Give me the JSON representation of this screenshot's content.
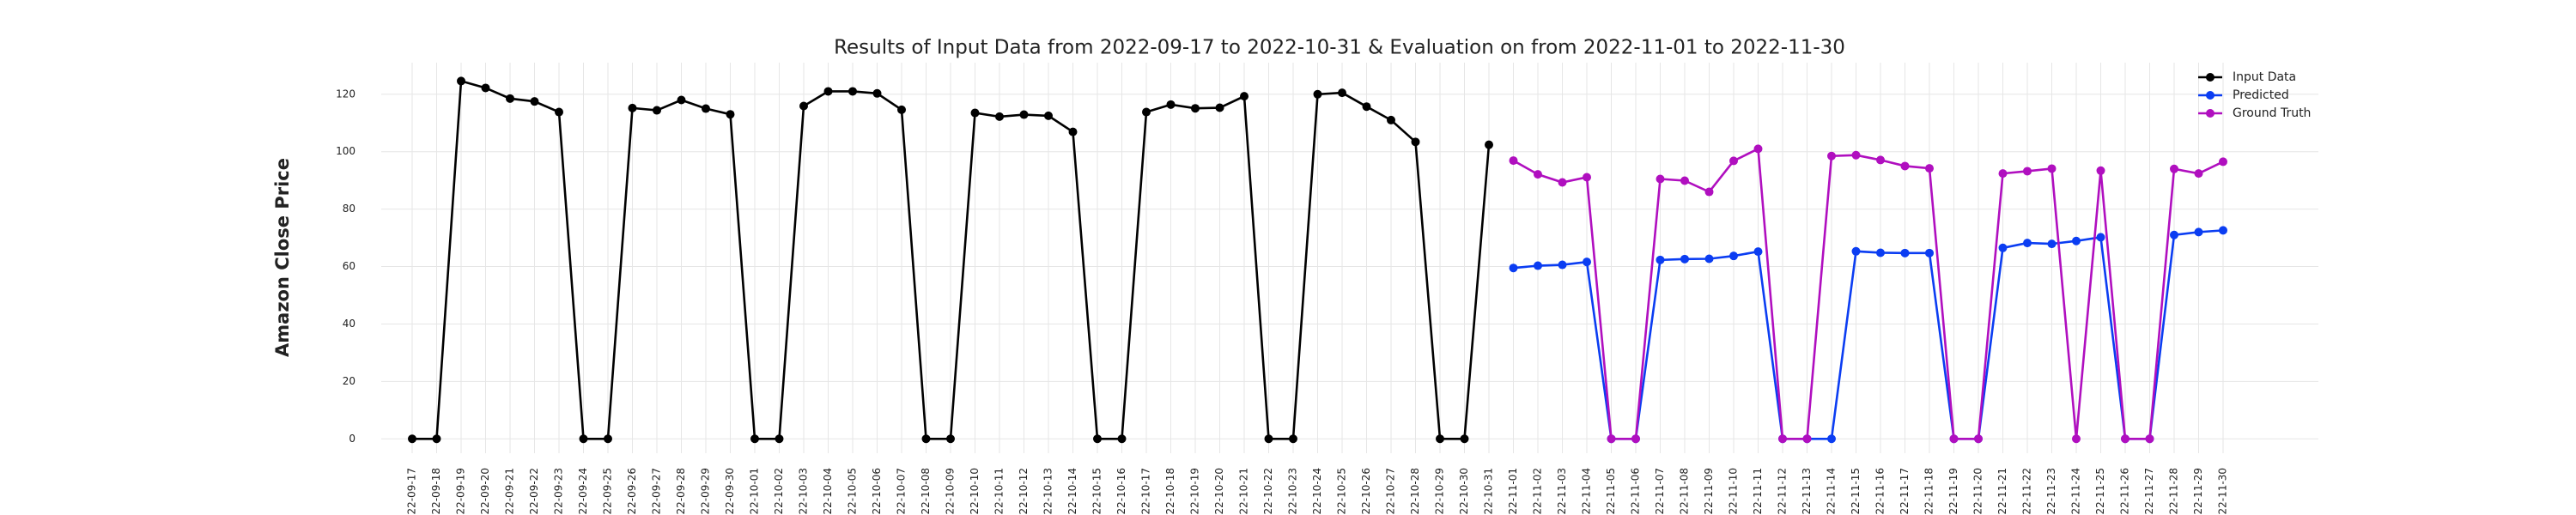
{
  "chart_data": {
    "type": "line",
    "title": "Results of Input Data from 2022-09-17 to 2022-10-31 & Evaluation on from 2022-11-01 to 2022-11-30",
    "y_label": "Amazon Close Price",
    "x": [
      "2022-09-17",
      "2022-09-18",
      "2022-09-19",
      "2022-09-20",
      "2022-09-21",
      "2022-09-22",
      "2022-09-23",
      "2022-09-24",
      "2022-09-25",
      "2022-09-26",
      "2022-09-27",
      "2022-09-28",
      "2022-09-29",
      "2022-09-30",
      "2022-10-01",
      "2022-10-02",
      "2022-10-03",
      "2022-10-04",
      "2022-10-05",
      "2022-10-06",
      "2022-10-07",
      "2022-10-08",
      "2022-10-09",
      "2022-10-10",
      "2022-10-11",
      "2022-10-12",
      "2022-10-13",
      "2022-10-14",
      "2022-10-15",
      "2022-10-16",
      "2022-10-17",
      "2022-10-18",
      "2022-10-19",
      "2022-10-20",
      "2022-10-21",
      "2022-10-22",
      "2022-10-23",
      "2022-10-24",
      "2022-10-25",
      "2022-10-26",
      "2022-10-27",
      "2022-10-28",
      "2022-10-29",
      "2022-10-30",
      "2022-10-31",
      "2022-11-01",
      "2022-11-02",
      "2022-11-03",
      "2022-11-04",
      "2022-11-05",
      "2022-11-06",
      "2022-11-07",
      "2022-11-08",
      "2022-11-09",
      "2022-11-10",
      "2022-11-11",
      "2022-11-12",
      "2022-11-13",
      "2022-11-14",
      "2022-11-15",
      "2022-11-16",
      "2022-11-17",
      "2022-11-18",
      "2022-11-19",
      "2022-11-20",
      "2022-11-21",
      "2022-11-22",
      "2022-11-23",
      "2022-11-24",
      "2022-11-25",
      "2022-11-26",
      "2022-11-27",
      "2022-11-28",
      "2022-11-29",
      "2022-11-30"
    ],
    "series": [
      {
        "name": "Input Data",
        "color": "#000000",
        "values": [
          0,
          0,
          124.6,
          122.2,
          118.5,
          117.5,
          113.8,
          0,
          0,
          115.2,
          114.4,
          118,
          115,
          113,
          0,
          0,
          115.9,
          121,
          121,
          120.3,
          114.6,
          0,
          0,
          113.5,
          112.2,
          112.9,
          112.5,
          106.9,
          0,
          0,
          113.8,
          116.4,
          115.1,
          115.3,
          119.3,
          0,
          0,
          120,
          120.5,
          115.7,
          111,
          103.4,
          0,
          0,
          102.4,
          null,
          null,
          null,
          null,
          null,
          null,
          null,
          null,
          null,
          null,
          null,
          null,
          null,
          null,
          null,
          null,
          null,
          null,
          null,
          null,
          null,
          null,
          null,
          null,
          null,
          null,
          null,
          null,
          null,
          null
        ]
      },
      {
        "name": "Predicted",
        "color": "#0b3df2",
        "values": [
          null,
          null,
          null,
          null,
          null,
          null,
          null,
          null,
          null,
          null,
          null,
          null,
          null,
          null,
          null,
          null,
          null,
          null,
          null,
          null,
          null,
          null,
          null,
          null,
          null,
          null,
          null,
          null,
          null,
          null,
          null,
          null,
          null,
          null,
          null,
          null,
          null,
          null,
          null,
          null,
          null,
          null,
          null,
          null,
          null,
          59.5,
          60.3,
          60.6,
          61.6,
          0,
          0,
          62.3,
          62.6,
          62.7,
          63.7,
          65.2,
          0,
          0,
          0,
          65.3,
          64.8,
          64.7,
          64.7,
          0,
          0,
          66.5,
          68.2,
          67.9,
          68.9,
          70.2,
          0,
          0,
          71,
          72,
          72.6
        ]
      },
      {
        "name": "Ground Truth",
        "color": "#b00fbf",
        "values": [
          null,
          null,
          null,
          null,
          null,
          null,
          null,
          null,
          null,
          null,
          null,
          null,
          null,
          null,
          null,
          null,
          null,
          null,
          null,
          null,
          null,
          null,
          null,
          null,
          null,
          null,
          null,
          null,
          null,
          null,
          null,
          null,
          null,
          null,
          null,
          null,
          null,
          null,
          null,
          null,
          null,
          null,
          null,
          null,
          null,
          96.9,
          92.1,
          89.3,
          91.1,
          0,
          0,
          90.5,
          89.9,
          86,
          96.8,
          101,
          0,
          0,
          98.5,
          98.8,
          97.1,
          95,
          94.2,
          0,
          0,
          92.4,
          93.2,
          94.1,
          0,
          93.4,
          0,
          0,
          94,
          92.4,
          96.5
        ]
      }
    ],
    "ylim": [
      -5,
      131
    ],
    "yticks": [
      0,
      20,
      40,
      60,
      80,
      100,
      120
    ],
    "grid": true,
    "legend": "upper right"
  }
}
